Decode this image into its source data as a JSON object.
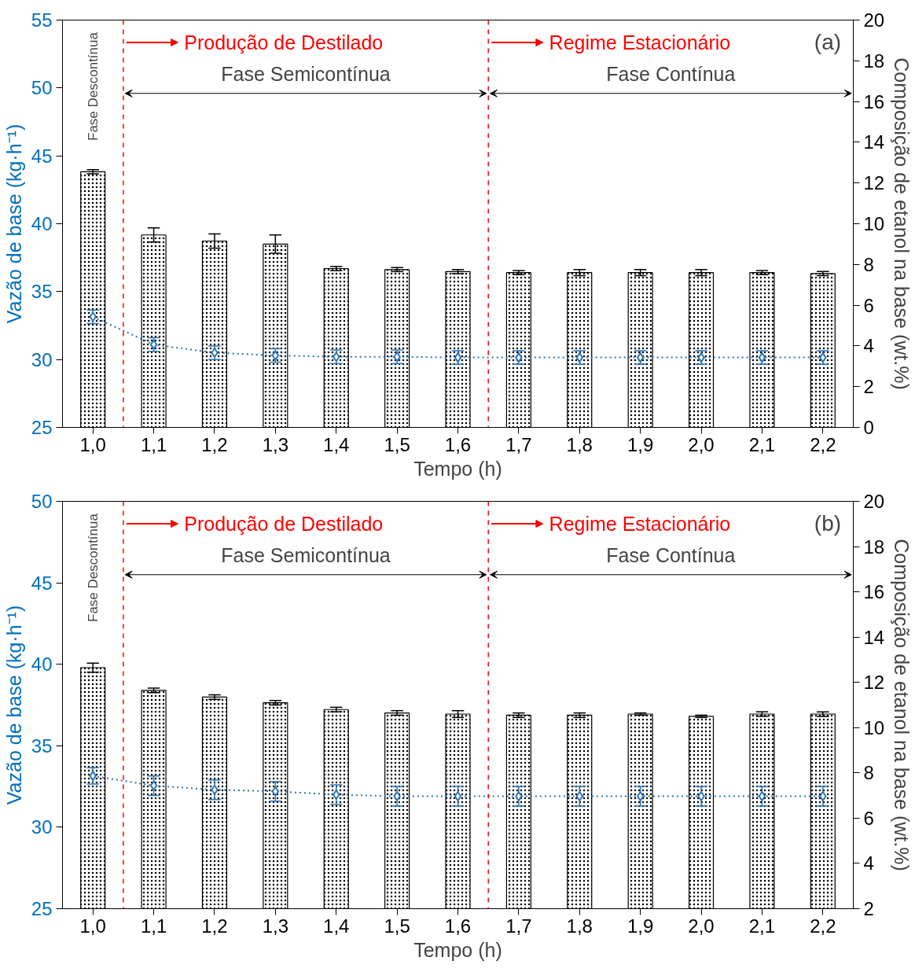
{
  "chart_data": [
    {
      "type": "bar",
      "xlabel": "Tempo (h)",
      "ylabel": "Vazão de base (kg·h⁻¹)",
      "y2label": "Composição de etanol na base (wt.%)",
      "x": [
        1.0,
        1.1,
        1.2,
        1.3,
        1.4,
        1.5,
        1.6,
        1.7,
        1.8,
        1.9,
        2.0,
        2.1,
        2.2
      ],
      "xlim": [
        0.95,
        2.25
      ],
      "xticks": [
        {
          "value": 1.0,
          "label": "1,0"
        },
        {
          "value": 1.1,
          "label": "1,1"
        },
        {
          "value": 1.2,
          "label": "1,2"
        },
        {
          "value": 1.3,
          "label": "1,3"
        },
        {
          "value": 1.4,
          "label": "1,4"
        },
        {
          "value": 1.5,
          "label": "1,5"
        },
        {
          "value": 1.6,
          "label": "1,6"
        },
        {
          "value": 1.7,
          "label": "1,7"
        },
        {
          "value": 1.8,
          "label": "1,8"
        },
        {
          "value": 1.9,
          "label": "1,9"
        },
        {
          "value": 2.0,
          "label": "2,0"
        },
        {
          "value": 2.1,
          "label": "2,1"
        },
        {
          "value": 2.2,
          "label": "2,2"
        }
      ],
      "ylim": [
        25,
        55
      ],
      "yticks": [
        25,
        30,
        35,
        40,
        45,
        50,
        55
      ],
      "y2lim": [
        0,
        20
      ],
      "y2ticks": [
        0,
        2,
        4,
        6,
        8,
        10,
        12,
        14,
        16,
        18,
        20
      ],
      "series": [
        {
          "axis": "y2",
          "color": "#000000",
          "values": [
            12.55,
            9.45,
            9.15,
            9.0,
            7.8,
            7.75,
            7.65,
            7.6,
            7.6,
            7.6,
            7.6,
            7.6,
            7.55
          ],
          "errors": [
            0.1,
            0.35,
            0.35,
            0.45,
            0.1,
            0.1,
            0.1,
            0.1,
            0.15,
            0.15,
            0.15,
            0.1,
            0.1
          ]
        },
        {
          "type": "line",
          "axis": "y",
          "color": "#2e75b6",
          "marker": "diamond",
          "line_style": "dotted",
          "values": [
            33.15,
            31.1,
            30.5,
            30.3,
            30.2,
            30.2,
            30.15,
            30.15,
            30.15,
            30.15,
            30.15,
            30.15,
            30.15
          ],
          "errors": [
            0.5,
            0.5,
            0.5,
            0.5,
            0.5,
            0.5,
            0.5,
            0.5,
            0.5,
            0.5,
            0.5,
            0.5,
            0.5
          ]
        }
      ],
      "ref_lines": [
        {
          "axis": "x",
          "value": 1.05,
          "label": "Produção de Destilado",
          "color": "#ff0000",
          "line_style": "dashed"
        },
        {
          "axis": "x",
          "value": 1.65,
          "label": "Regime Estacionário",
          "color": "#ff0000",
          "line_style": "dashed"
        }
      ],
      "annotations": [
        "Fase Descontínua",
        "Fase Semicontínua",
        "Fase Contínua",
        "(a)"
      ],
      "grid": false
    },
    {
      "type": "bar",
      "xlabel": "Tempo (h)",
      "ylabel": "Vazão de base (kg·h⁻¹)",
      "y2label": "Composição de etanol na base (wt.%)",
      "x": [
        1.0,
        1.1,
        1.2,
        1.3,
        1.4,
        1.5,
        1.6,
        1.7,
        1.8,
        1.9,
        2.0,
        2.1,
        2.2
      ],
      "xlim": [
        0.95,
        2.25
      ],
      "xticks": [
        {
          "value": 1.0,
          "label": "1,0"
        },
        {
          "value": 1.1,
          "label": "1,1"
        },
        {
          "value": 1.2,
          "label": "1,2"
        },
        {
          "value": 1.3,
          "label": "1,3"
        },
        {
          "value": 1.4,
          "label": "1,4"
        },
        {
          "value": 1.5,
          "label": "1,5"
        },
        {
          "value": 1.6,
          "label": "1,6"
        },
        {
          "value": 1.7,
          "label": "1,7"
        },
        {
          "value": 1.8,
          "label": "1,8"
        },
        {
          "value": 1.9,
          "label": "1,9"
        },
        {
          "value": 2.0,
          "label": "2,0"
        },
        {
          "value": 2.1,
          "label": "2,1"
        },
        {
          "value": 2.2,
          "label": "2,2"
        }
      ],
      "ylim": [
        25,
        50
      ],
      "yticks": [
        25,
        30,
        35,
        40,
        45,
        50
      ],
      "y2lim": [
        2,
        20
      ],
      "y2ticks": [
        2,
        4,
        6,
        8,
        10,
        12,
        14,
        16,
        18,
        20
      ],
      "series": [
        {
          "axis": "y2",
          "color": "#000000",
          "values": [
            12.65,
            11.65,
            11.35,
            11.1,
            10.8,
            10.65,
            10.6,
            10.55,
            10.55,
            10.6,
            10.5,
            10.6,
            10.6
          ],
          "errors": [
            0.2,
            0.1,
            0.1,
            0.1,
            0.1,
            0.1,
            0.15,
            0.1,
            0.1,
            0.05,
            0.05,
            0.1,
            0.1
          ]
        },
        {
          "type": "line",
          "axis": "y",
          "color": "#2e75b6",
          "marker": "diamond",
          "line_style": "dotted",
          "values": [
            33.15,
            32.55,
            32.3,
            32.2,
            32.0,
            31.9,
            31.9,
            31.9,
            31.9,
            31.9,
            31.9,
            31.9,
            31.9
          ],
          "errors": [
            0.5,
            0.6,
            0.6,
            0.6,
            0.6,
            0.6,
            0.6,
            0.6,
            0.6,
            0.6,
            0.6,
            0.6,
            0.6
          ]
        }
      ],
      "ref_lines": [
        {
          "axis": "x",
          "value": 1.05,
          "label": "Produção de Destilado",
          "color": "#ff0000",
          "line_style": "dashed"
        },
        {
          "axis": "x",
          "value": 1.65,
          "label": "Regime Estacionário",
          "color": "#ff0000",
          "line_style": "dashed"
        }
      ],
      "annotations": [
        "Fase Descontínua",
        "Fase Semicontínua",
        "Fase Contínua",
        "(b)"
      ],
      "grid": false
    }
  ]
}
